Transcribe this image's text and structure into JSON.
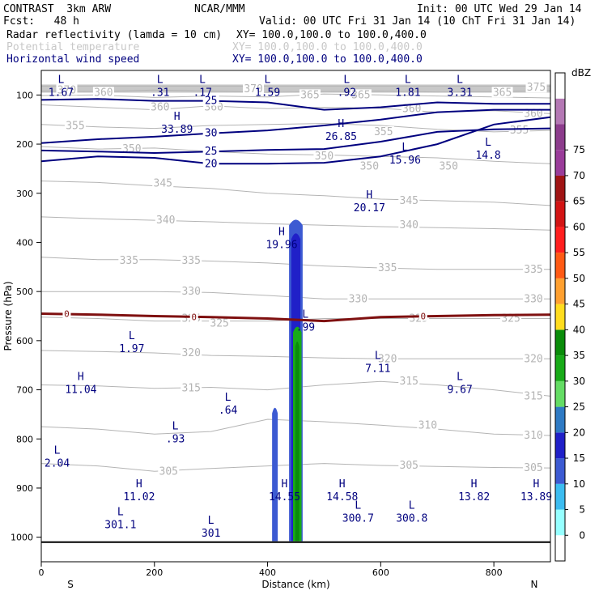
{
  "header": {
    "model": "CONTRAST  3km ARW",
    "org": "NCAR/MMM",
    "init": "Init: 00 UTC Wed 29 Jan 14",
    "fcst": "Fcst:   48 h",
    "valid": "Valid: 00 UTC Fri 31 Jan 14 (10 ChT Fri 31 Jan 14)",
    "fields": [
      {
        "name": "Radar reflectivity (lamda = 10 cm)",
        "xy": "XY= 100.0,100.0 to 100.0,400.0",
        "color": "#000000"
      },
      {
        "name": "Potential temperature",
        "xy": "XY= 100.0,100.0 to 100.0,400.0",
        "color": "#c8c8c8"
      },
      {
        "name": "Horizontal wind speed",
        "xy": "XY= 100.0,100.0 to 100.0,400.0",
        "color": "#00007f"
      }
    ]
  },
  "chart_data": {
    "type": "contour-cross-section",
    "xlabel": "Distance (km)",
    "ylabel": "Pressure (hPa)",
    "xlim": [
      0,
      900
    ],
    "ylim": [
      1050,
      50
    ],
    "x_ticks": [
      0,
      200,
      400,
      600,
      800
    ],
    "y_ticks": [
      100,
      200,
      300,
      400,
      500,
      600,
      700,
      800,
      900,
      1000
    ],
    "x_end_labels": {
      "left": "S",
      "right": "N"
    },
    "colorbar": {
      "unit": "dBZ",
      "levels": [
        0,
        5,
        10,
        15,
        20,
        25,
        30,
        35,
        40,
        45,
        50,
        55,
        60,
        65,
        70,
        75
      ],
      "colors": [
        "#ffffff",
        "#96ffff",
        "#3cbcf0",
        "#3c5ad2",
        "#2020c8",
        "#2e7ac4",
        "#64dc64",
        "#18aa18",
        "#0a8c0a",
        "#ffdc1e",
        "#ffa030",
        "#ff5a14",
        "#ff1e1e",
        "#d21414",
        "#a01414",
        "#9a3c9a",
        "#8c3c8c",
        "#b478b4",
        "#ffffff"
      ]
    },
    "highs_lows": [
      {
        "type": "L",
        "label": "1.67",
        "x": 35,
        "p": 95
      },
      {
        "type": "L",
        "label": ".31",
        "x": 210,
        "p": 95
      },
      {
        "type": "L",
        "label": ".17",
        "x": 285,
        "p": 95
      },
      {
        "type": "L",
        "label": "1.59",
        "x": 400,
        "p": 95
      },
      {
        "type": "L",
        "label": ".92",
        "x": 540,
        "p": 95
      },
      {
        "type": "L",
        "label": "1.81",
        "x": 648,
        "p": 95
      },
      {
        "type": "L",
        "label": "3.31",
        "x": 740,
        "p": 95
      },
      {
        "type": "H",
        "label": "33.89",
        "x": 240,
        "p": 170
      },
      {
        "type": "H",
        "label": "26.85",
        "x": 530,
        "p": 185
      },
      {
        "type": "L",
        "label": "15.96",
        "x": 643,
        "p": 233
      },
      {
        "type": "L",
        "label": "14.8",
        "x": 790,
        "p": 223
      },
      {
        "type": "H",
        "label": "20.17",
        "x": 580,
        "p": 330
      },
      {
        "type": "H",
        "label": "19.96",
        "x": 425,
        "p": 405
      },
      {
        "type": "L",
        "label": ".99",
        "x": 467,
        "p": 573
      },
      {
        "type": "L",
        "label": "1.97",
        "x": 160,
        "p": 617
      },
      {
        "type": "L",
        "label": "7.11",
        "x": 595,
        "p": 657
      },
      {
        "type": "H",
        "label": "11.04",
        "x": 70,
        "p": 700
      },
      {
        "type": "L",
        "label": ".64",
        "x": 330,
        "p": 742
      },
      {
        "type": "L",
        "label": "9.67",
        "x": 740,
        "p": 700
      },
      {
        "type": "L",
        "label": ".93",
        "x": 237,
        "p": 800
      },
      {
        "type": "L",
        "label": "2.04",
        "x": 28,
        "p": 850
      },
      {
        "type": "H",
        "label": "11.02",
        "x": 173,
        "p": 918
      },
      {
        "type": "H",
        "label": "14.55",
        "x": 430,
        "p": 918
      },
      {
        "type": "H",
        "label": "14.58",
        "x": 532,
        "p": 918
      },
      {
        "type": "H",
        "label": "13.82",
        "x": 765,
        "p": 918
      },
      {
        "type": "H",
        "label": "13.89",
        "x": 875,
        "p": 918
      },
      {
        "type": "L",
        "label": "301.1",
        "x": 140,
        "p": 975
      },
      {
        "type": "L",
        "label": "301",
        "x": 300,
        "p": 992
      },
      {
        "type": "L",
        "label": "300.7",
        "x": 560,
        "p": 962
      },
      {
        "type": "L",
        "label": "300.8",
        "x": 655,
        "p": 962
      }
    ],
    "theta_labels": [
      {
        "label": "375",
        "x": 875,
        "p": 85
      },
      {
        "label": "370",
        "x": 45,
        "p": 90
      },
      {
        "label": "360",
        "x": 110,
        "p": 95
      },
      {
        "label": "370",
        "x": 375,
        "p": 88
      },
      {
        "label": "365",
        "x": 475,
        "p": 100
      },
      {
        "label": "365",
        "x": 565,
        "p": 100
      },
      {
        "label": "365",
        "x": 815,
        "p": 95
      },
      {
        "label": "360",
        "x": 210,
        "p": 125
      },
      {
        "label": "360",
        "x": 305,
        "p": 125
      },
      {
        "label": "360",
        "x": 655,
        "p": 128
      },
      {
        "label": "360",
        "x": 870,
        "p": 138
      },
      {
        "label": "355",
        "x": 60,
        "p": 163
      },
      {
        "label": "355",
        "x": 605,
        "p": 175
      },
      {
        "label": "355",
        "x": 845,
        "p": 172
      },
      {
        "label": "350",
        "x": 160,
        "p": 210
      },
      {
        "label": "350",
        "x": 500,
        "p": 225
      },
      {
        "label": "350",
        "x": 580,
        "p": 245
      },
      {
        "label": "350",
        "x": 720,
        "p": 245
      },
      {
        "label": "345",
        "x": 215,
        "p": 280
      },
      {
        "label": "345",
        "x": 650,
        "p": 315
      },
      {
        "label": "340",
        "x": 220,
        "p": 355
      },
      {
        "label": "340",
        "x": 650,
        "p": 365
      },
      {
        "label": "335",
        "x": 155,
        "p": 437
      },
      {
        "label": "335",
        "x": 265,
        "p": 437
      },
      {
        "label": "335",
        "x": 612,
        "p": 452
      },
      {
        "label": "335",
        "x": 870,
        "p": 455
      },
      {
        "label": "330",
        "x": 265,
        "p": 500
      },
      {
        "label": "330",
        "x": 560,
        "p": 515
      },
      {
        "label": "330",
        "x": 870,
        "p": 515
      },
      {
        "label": "325",
        "x": 265,
        "p": 555
      },
      {
        "label": "325",
        "x": 315,
        "p": 565
      },
      {
        "label": "325",
        "x": 667,
        "p": 555
      },
      {
        "label": "325",
        "x": 830,
        "p": 555
      },
      {
        "label": "320",
        "x": 265,
        "p": 625
      },
      {
        "label": "320",
        "x": 612,
        "p": 637
      },
      {
        "label": "320",
        "x": 870,
        "p": 637
      },
      {
        "label": "315",
        "x": 265,
        "p": 697
      },
      {
        "label": "315",
        "x": 650,
        "p": 683
      },
      {
        "label": "315",
        "x": 870,
        "p": 713
      },
      {
        "label": "310",
        "x": 683,
        "p": 772
      },
      {
        "label": "310",
        "x": 870,
        "p": 793
      },
      {
        "label": "305",
        "x": 225,
        "p": 866
      },
      {
        "label": "305",
        "x": 650,
        "p": 854
      },
      {
        "label": "305",
        "x": 870,
        "p": 859
      }
    ],
    "theta_levels": [
      {
        "p": [
          82,
          82,
          82,
          82,
          82,
          82,
          82,
          82,
          82,
          82
        ]
      },
      {
        "p": [
          92,
          93,
          90,
          92,
          95,
          93,
          92,
          94,
          93,
          91
        ]
      },
      {
        "p": [
          101,
          100,
          105,
          102,
          104,
          98,
          100,
          102,
          104,
          106
        ]
      },
      {
        "p": [
          120,
          125,
          130,
          122,
          128,
          125,
          127,
          135,
          132,
          138
        ]
      },
      {
        "p": [
          160,
          165,
          168,
          162,
          160,
          158,
          162,
          170,
          175,
          172
        ]
      },
      {
        "p": [
          205,
          210,
          208,
          215,
          220,
          222,
          225,
          228,
          235,
          240
        ]
      },
      {
        "p": [
          275,
          278,
          285,
          290,
          300,
          305,
          312,
          315,
          318,
          325
        ]
      },
      {
        "p": [
          348,
          352,
          355,
          358,
          362,
          365,
          368,
          370,
          372,
          375
        ]
      },
      {
        "p": [
          430,
          435,
          435,
          438,
          442,
          448,
          452,
          455,
          455,
          455
        ]
      },
      {
        "p": [
          500,
          500,
          500,
          502,
          508,
          515,
          515,
          515,
          515,
          515
        ]
      },
      {
        "p": [
          552,
          555,
          560,
          560,
          560,
          555,
          555,
          555,
          555,
          555
        ]
      },
      {
        "p": [
          620,
          622,
          625,
          630,
          632,
          635,
          637,
          637,
          637,
          637
        ]
      },
      {
        "p": [
          690,
          692,
          697,
          695,
          700,
          690,
          683,
          690,
          700,
          713
        ]
      },
      {
        "p": [
          775,
          780,
          790,
          785,
          760,
          765,
          772,
          780,
          790,
          793
        ]
      },
      {
        "p": [
          850,
          855,
          866,
          860,
          855,
          850,
          854,
          856,
          858,
          859
        ]
      }
    ],
    "wind_levels": [
      {
        "label": "25",
        "p": [
          110,
          108,
          112,
          112,
          115,
          130,
          125,
          115,
          118,
          118
        ]
      },
      {
        "label": "20",
        "p": [
          235,
          225,
          228,
          240,
          240,
          238,
          225,
          200,
          160,
          145
        ]
      },
      {
        "label": "25",
        "p": [
          213,
          215,
          218,
          215,
          212,
          210,
          195,
          175,
          170,
          168
        ]
      },
      {
        "label": "30",
        "p": [
          198,
          190,
          185,
          178,
          172,
          162,
          150,
          135,
          130,
          130
        ]
      }
    ],
    "freezing_level": {
      "label": "0",
      "p": [
        545,
        547,
        550,
        552,
        555,
        560,
        552,
        550,
        548,
        547
      ]
    },
    "reflectivity_column": [
      {
        "dbz_level": 10,
        "x0": 408,
        "x1": 418,
        "p_top": 735,
        "p_bot": 1008
      },
      {
        "dbz_level": 10,
        "x0": 438,
        "x1": 462,
        "p_top": 352,
        "p_bot": 1008
      },
      {
        "dbz_level": 15,
        "x0": 442,
        "x1": 458,
        "p_top": 380,
        "p_bot": 1008
      },
      {
        "dbz_level": 30,
        "x0": 445,
        "x1": 460,
        "p_top": 570,
        "p_bot": 1008
      },
      {
        "dbz_level": 35,
        "x0": 449,
        "x1": 456,
        "p_top": 600,
        "p_bot": 1008
      }
    ]
  }
}
